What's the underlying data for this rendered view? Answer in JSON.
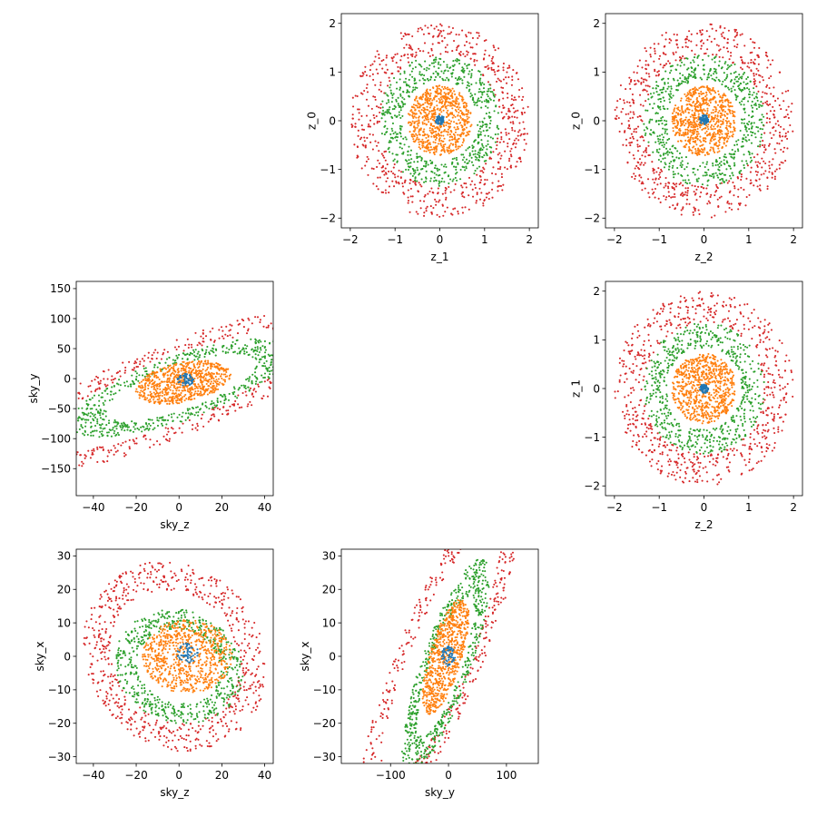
{
  "palette": {
    "blue": "#1f77b4",
    "orange": "#ff7f0e",
    "green": "#2ca02c",
    "red": "#d62728"
  },
  "figure": {
    "layout": "3x3 corner plot, cells (0,0) and (1,1) and (2,2) empty",
    "series_order": [
      "blue",
      "orange",
      "green",
      "red"
    ]
  },
  "chart_data": [
    {
      "id": "z1_z0",
      "type": "scatter",
      "xlabel": "z_1",
      "ylabel": "z_0",
      "xlim": [
        -2.2,
        2.2
      ],
      "ylim": [
        -2.2,
        2.2
      ],
      "xticks": [
        -2,
        -1,
        0,
        1,
        2
      ],
      "yticks": [
        -2,
        -1,
        0,
        1,
        2
      ],
      "xtick_labels": [
        "−2",
        "−1",
        "0",
        "1",
        "2"
      ],
      "ytick_labels": [
        "−2",
        "−1",
        "0",
        "1",
        "2"
      ],
      "series": [
        {
          "color": "blue",
          "shape": "ellipse",
          "cx": 0.0,
          "cy": 0.02,
          "a": 0.1,
          "b": 0.1,
          "angle_deg": 0,
          "thickness": 1.0,
          "n": 60
        },
        {
          "color": "orange",
          "shape": "ellipse",
          "cx": 0.0,
          "cy": 0.0,
          "a": 0.72,
          "b": 0.72,
          "angle_deg": 0,
          "thickness": 1.0,
          "n": 700
        },
        {
          "color": "green",
          "shape": "ellipse",
          "cx": 0.0,
          "cy": 0.0,
          "a": 1.35,
          "b": 1.35,
          "angle_deg": 0,
          "thickness": 0.38,
          "n": 600
        },
        {
          "color": "red",
          "shape": "ellipse",
          "cx": 0.0,
          "cy": 0.0,
          "a": 2.0,
          "b": 2.0,
          "angle_deg": 0,
          "thickness": 0.33,
          "n": 650
        }
      ]
    },
    {
      "id": "z2_z0",
      "type": "scatter",
      "xlabel": "z_2",
      "ylabel": "z_0",
      "xlim": [
        -2.2,
        2.2
      ],
      "ylim": [
        -2.2,
        2.2
      ],
      "xticks": [
        -2,
        -1,
        0,
        1,
        2
      ],
      "yticks": [
        -2,
        -1,
        0,
        1,
        2
      ],
      "xtick_labels": [
        "−2",
        "−1",
        "0",
        "1",
        "2"
      ],
      "ytick_labels": [
        "−2",
        "−1",
        "0",
        "1",
        "2"
      ],
      "series": [
        {
          "color": "blue",
          "shape": "ellipse",
          "cx": 0.0,
          "cy": 0.02,
          "a": 0.1,
          "b": 0.1,
          "angle_deg": 0,
          "thickness": 1.0,
          "n": 60
        },
        {
          "color": "orange",
          "shape": "ellipse",
          "cx": 0.0,
          "cy": 0.0,
          "a": 0.72,
          "b": 0.72,
          "angle_deg": 0,
          "thickness": 1.0,
          "n": 700
        },
        {
          "color": "green",
          "shape": "ellipse",
          "cx": 0.0,
          "cy": 0.0,
          "a": 1.35,
          "b": 1.35,
          "angle_deg": 0,
          "thickness": 0.38,
          "n": 600
        },
        {
          "color": "red",
          "shape": "ellipse",
          "cx": 0.0,
          "cy": 0.0,
          "a": 2.0,
          "b": 2.0,
          "angle_deg": 0,
          "thickness": 0.33,
          "n": 650
        }
      ]
    },
    {
      "id": "skyz_skyy",
      "type": "scatter",
      "xlabel": "sky_z",
      "ylabel": "sky_y",
      "xlim": [
        -48,
        44
      ],
      "ylim": [
        -195,
        162
      ],
      "xticks": [
        -40,
        -20,
        0,
        20,
        40
      ],
      "yticks": [
        -150,
        -100,
        -50,
        0,
        50,
        100,
        150
      ],
      "xtick_labels": [
        "−40",
        "−20",
        "0",
        "20",
        "40"
      ],
      "ytick_labels": [
        "−150",
        "−100",
        "−50",
        "0",
        "50",
        "100",
        "150"
      ],
      "series": [
        {
          "color": "blue",
          "shape": "ellipse",
          "cx": 3,
          "cy": -2,
          "a": 4,
          "b": 10,
          "angle_deg": 0,
          "thickness": 1.0,
          "n": 60
        },
        {
          "color": "orange",
          "shape": "ellipse",
          "cx": 2,
          "cy": -6,
          "a": 20,
          "b": 38,
          "angle_deg": -18,
          "thickness": 1.0,
          "n": 700
        },
        {
          "color": "green",
          "shape": "ellipse",
          "cx": 1,
          "cy": -15,
          "a": 32,
          "b": 92,
          "angle_deg": -28,
          "thickness": 0.32,
          "n": 600
        },
        {
          "color": "red",
          "shape": "ellipse",
          "cx": -3,
          "cy": -20,
          "a": 44,
          "b": 155,
          "angle_deg": -28,
          "thickness": 0.3,
          "n": 650
        }
      ]
    },
    {
      "id": "z2_z1",
      "type": "scatter",
      "xlabel": "z_2",
      "ylabel": "z_1",
      "xlim": [
        -2.2,
        2.2
      ],
      "ylim": [
        -2.2,
        2.2
      ],
      "xticks": [
        -2,
        -1,
        0,
        1,
        2
      ],
      "yticks": [
        -2,
        -1,
        0,
        1,
        2
      ],
      "xtick_labels": [
        "−2",
        "−1",
        "0",
        "1",
        "2"
      ],
      "ytick_labels": [
        "−2",
        "−1",
        "0",
        "1",
        "2"
      ],
      "series": [
        {
          "color": "blue",
          "shape": "ellipse",
          "cx": 0.0,
          "cy": 0.0,
          "a": 0.1,
          "b": 0.1,
          "angle_deg": 0,
          "thickness": 1.0,
          "n": 60
        },
        {
          "color": "orange",
          "shape": "ellipse",
          "cx": 0.0,
          "cy": 0.0,
          "a": 0.72,
          "b": 0.72,
          "angle_deg": 0,
          "thickness": 1.0,
          "n": 700
        },
        {
          "color": "green",
          "shape": "ellipse",
          "cx": 0.0,
          "cy": 0.0,
          "a": 1.35,
          "b": 1.35,
          "angle_deg": 0,
          "thickness": 0.38,
          "n": 600
        },
        {
          "color": "red",
          "shape": "ellipse",
          "cx": 0.0,
          "cy": 0.0,
          "a": 2.0,
          "b": 2.0,
          "angle_deg": 0,
          "thickness": 0.33,
          "n": 650
        }
      ]
    },
    {
      "id": "skyz_skyx",
      "type": "scatter",
      "xlabel": "sky_z",
      "ylabel": "sky_x",
      "xlim": [
        -48,
        44
      ],
      "ylim": [
        -32,
        32
      ],
      "xticks": [
        -40,
        -20,
        0,
        20,
        40
      ],
      "yticks": [
        -30,
        -20,
        -10,
        0,
        10,
        20,
        30
      ],
      "xtick_labels": [
        "−40",
        "−20",
        "0",
        "20",
        "40"
      ],
      "ytick_labels": [
        "−30",
        "−20",
        "−10",
        "0",
        "10",
        "20",
        "30"
      ],
      "series": [
        {
          "color": "blue",
          "shape": "ellipse",
          "cx": 4,
          "cy": 1,
          "a": 5,
          "b": 3,
          "angle_deg": 0,
          "thickness": 1.0,
          "n": 60
        },
        {
          "color": "orange",
          "shape": "ellipse",
          "cx": 4,
          "cy": 0,
          "a": 21,
          "b": 11,
          "angle_deg": 0,
          "thickness": 1.0,
          "n": 700
        },
        {
          "color": "green",
          "shape": "ellipse",
          "cx": 0,
          "cy": -3,
          "a": 30,
          "b": 17,
          "angle_deg": -5,
          "thickness": 0.35,
          "n": 600
        },
        {
          "color": "red",
          "shape": "ellipse",
          "cx": -2,
          "cy": 0,
          "a": 43,
          "b": 28,
          "angle_deg": -8,
          "thickness": 0.3,
          "n": 650
        }
      ]
    },
    {
      "id": "skyy_skyx",
      "type": "scatter",
      "xlabel": "sky_y",
      "ylabel": "sky_x",
      "xlim": [
        -185,
        155
      ],
      "ylim": [
        -32,
        32
      ],
      "xticks": [
        -100,
        0,
        100
      ],
      "yticks": [
        -30,
        -20,
        -10,
        0,
        10,
        20,
        30
      ],
      "xtick_labels": [
        "−100",
        "0",
        "100"
      ],
      "ytick_labels": [
        "−30",
        "−20",
        "−10",
        "0",
        "10",
        "20",
        "30"
      ],
      "series": [
        {
          "color": "blue",
          "shape": "ellipse",
          "cx": 0,
          "cy": 0,
          "a": 12,
          "b": 3,
          "angle_deg": 0,
          "thickness": 1.0,
          "n": 60
        },
        {
          "color": "orange",
          "shape": "ellipse",
          "cx": -5,
          "cy": 0,
          "a": 42,
          "b": 12,
          "angle_deg": 18,
          "thickness": 1.0,
          "n": 700
        },
        {
          "color": "green",
          "shape": "ellipse",
          "cx": -5,
          "cy": -3,
          "a": 80,
          "b": 18,
          "angle_deg": 20,
          "thickness": 0.35,
          "n": 600
        },
        {
          "color": "red",
          "shape": "ellipse",
          "cx": -15,
          "cy": 0,
          "a": 150,
          "b": 28,
          "angle_deg": 18,
          "thickness": 0.3,
          "n": 650
        }
      ]
    }
  ]
}
